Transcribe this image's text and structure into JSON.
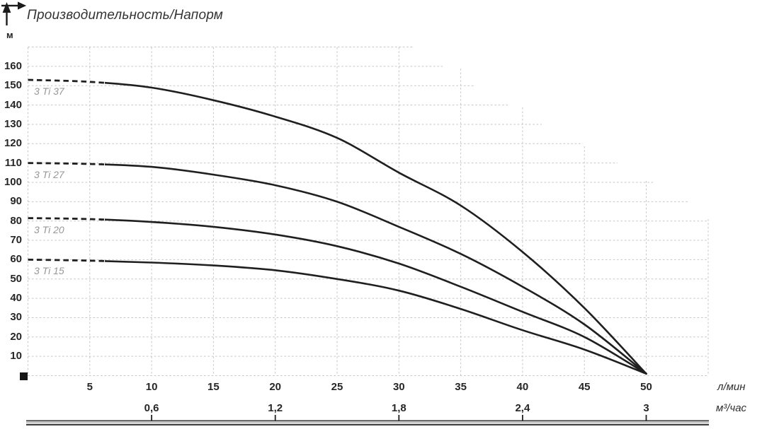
{
  "title": "Производительность/Напорм",
  "y_axis": {
    "unit": "м",
    "ticks": [
      10,
      20,
      30,
      40,
      50,
      60,
      70,
      80,
      90,
      100,
      110,
      120,
      130,
      140,
      150,
      160
    ]
  },
  "x_axis_primary": {
    "unit": "л/мин",
    "ticks": [
      5,
      10,
      15,
      20,
      25,
      30,
      35,
      40,
      45,
      50
    ]
  },
  "x_axis_secondary": {
    "unit": "м³/час",
    "ticks": [
      {
        "x": 10,
        "label": "0,6"
      },
      {
        "x": 20,
        "label": "1,2"
      },
      {
        "x": 30,
        "label": "1,8"
      },
      {
        "x": 40,
        "label": "2,4"
      },
      {
        "x": 50,
        "label": "3"
      }
    ]
  },
  "chart_data": {
    "type": "line",
    "title": "Производительность/Напорм",
    "xlabel": "л/мин",
    "xlabel_secondary": "м³/час",
    "ylabel": "м",
    "xlim": [
      0,
      57
    ],
    "ylim": [
      0,
      170
    ],
    "grid": true,
    "legend_position": "inline-left-of-each-curve",
    "x": [
      0,
      5,
      10,
      15,
      20,
      25,
      30,
      35,
      40,
      45,
      50
    ],
    "series": [
      {
        "name": "3 Ti 37",
        "dashed_until_x": 6,
        "values": [
          153,
          152,
          149,
          142.5,
          134,
          123,
          105,
          88,
          64,
          35,
          1
        ]
      },
      {
        "name": "3 Ti 27",
        "dashed_until_x": 6,
        "values": [
          110,
          109.5,
          108,
          104,
          98.5,
          90,
          77,
          63,
          46,
          26.5,
          1
        ]
      },
      {
        "name": "3 Ti 20",
        "dashed_until_x": 6,
        "values": [
          81.5,
          81,
          79.5,
          77,
          73,
          67,
          58,
          46,
          33,
          20,
          1
        ]
      },
      {
        "name": "3 Ti 15",
        "dashed_until_x": 6,
        "values": [
          60,
          59.5,
          58.5,
          57,
          54.5,
          50,
          44,
          34.5,
          23.5,
          13.5,
          1
        ]
      }
    ],
    "annotations": {
      "curves_converge_at": {
        "x": 50,
        "y": 1
      }
    }
  },
  "colors": {
    "curve": "#1f1f1f",
    "grid": "#c6c6c6",
    "text": "#262626",
    "muted_label": "#979797",
    "baseline_band": "#3d3d3d"
  }
}
